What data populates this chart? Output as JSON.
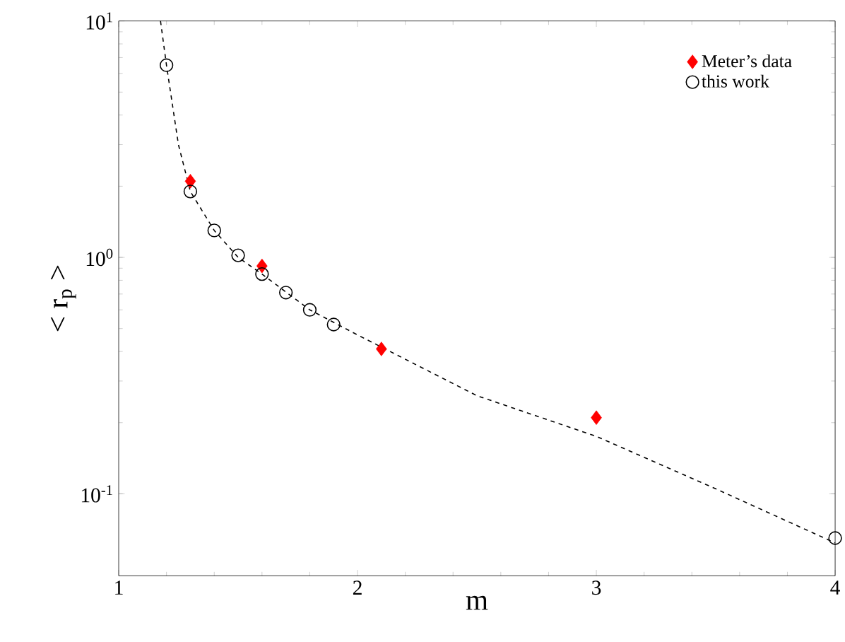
{
  "chart_data": {
    "type": "scatter",
    "xlabel": "m",
    "ylabel": "< r$_{p}$ >",
    "log": "y",
    "xlim": [
      1,
      4
    ],
    "ylim": [
      0.045,
      10
    ],
    "xticks": [
      1,
      2,
      3,
      4
    ],
    "yticks": [
      {
        "value": 0.1,
        "label": "10$^{-1}$"
      },
      {
        "value": 1,
        "label": "10$^{0}$"
      },
      {
        "value": 10,
        "label": "10$^{1}$"
      }
    ],
    "legend": "top right",
    "grid": false,
    "series": [
      {
        "type": "line",
        "line_style": "dashed",
        "marker": "none",
        "color": "#000000",
        "x": [
          1.175,
          1.2,
          1.25,
          1.3,
          1.4,
          1.5,
          1.6,
          1.8,
          2.0,
          2.5,
          3.0,
          3.5,
          4.0
        ],
        "values": [
          10,
          6.5,
          3,
          1.9,
          1.3,
          1.0,
          0.85,
          0.6,
          0.47,
          0.26,
          0.175,
          0.105,
          0.062
        ]
      },
      {
        "name": "Meter’s data",
        "marker": "diamond",
        "color": "#ff0000",
        "x": [
          1.3,
          1.6,
          2.1,
          3.0
        ],
        "values": [
          2.1,
          0.92,
          0.41,
          0.21
        ]
      },
      {
        "name": "this work",
        "marker": "circle",
        "color": "#000000",
        "x": [
          1.2,
          1.3,
          1.4,
          1.5,
          1.6,
          1.7,
          1.8,
          1.9,
          4.0
        ],
        "values": [
          6.5,
          1.9,
          1.3,
          1.02,
          0.85,
          0.71,
          0.6,
          0.52,
          0.065
        ]
      }
    ]
  }
}
